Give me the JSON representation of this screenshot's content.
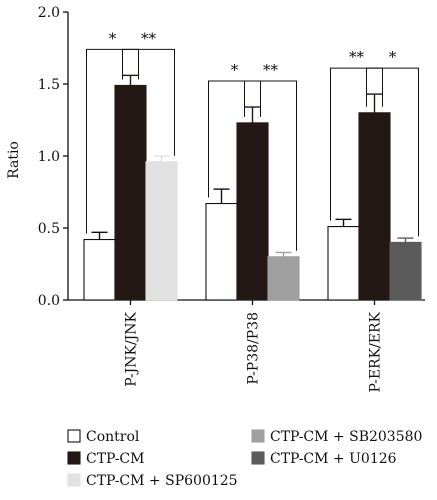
{
  "chart_data": {
    "type": "bar",
    "title": "",
    "xlabel": "",
    "ylabel": "Ratio",
    "ylim": [
      0,
      2.0
    ],
    "yticks": [
      "0.0",
      "0.5",
      "1.0",
      "1.5",
      "2.0"
    ],
    "grid": false,
    "legend_position": "bottom",
    "groups": [
      {
        "label": "P-JNK/JNK",
        "bars": [
          {
            "series": "Control",
            "value": 0.42,
            "error": 0.05
          },
          {
            "series": "CTP-CM",
            "value": 1.49,
            "error": 0.07
          },
          {
            "series": "CTP-CM + SP600125",
            "value": 0.96,
            "error": 0.04
          }
        ],
        "significance": [
          {
            "from": 0,
            "to": 1,
            "label": "*"
          },
          {
            "from": 1,
            "to": 2,
            "label": "**"
          }
        ]
      },
      {
        "label": "P-P38/P38",
        "bars": [
          {
            "series": "Control",
            "value": 0.67,
            "error": 0.1
          },
          {
            "series": "CTP-CM",
            "value": 1.23,
            "error": 0.11
          },
          {
            "series": "CTP-CM + SB203580",
            "value": 0.3,
            "error": 0.03
          }
        ],
        "significance": [
          {
            "from": 0,
            "to": 1,
            "label": "*"
          },
          {
            "from": 1,
            "to": 2,
            "label": "**"
          }
        ]
      },
      {
        "label": "P-ERK/ERK",
        "bars": [
          {
            "series": "Control",
            "value": 0.51,
            "error": 0.05
          },
          {
            "series": "CTP-CM",
            "value": 1.3,
            "error": 0.13
          },
          {
            "series": "CTP-CM + U0126",
            "value": 0.4,
            "error": 0.03
          }
        ],
        "significance": [
          {
            "from": 0,
            "to": 1,
            "label": "**"
          },
          {
            "from": 1,
            "to": 2,
            "label": "*"
          }
        ]
      }
    ],
    "series": [
      {
        "name": "Control",
        "color": "#ffffff"
      },
      {
        "name": "CTP-CM",
        "color": "#231815"
      },
      {
        "name": "CTP-CM + SP600125",
        "color": "#e1e1e1"
      },
      {
        "name": "CTP-CM + SB203580",
        "color": "#9f9f9f"
      },
      {
        "name": "CTP-CM + U0126",
        "color": "#5b5b5b"
      }
    ]
  }
}
